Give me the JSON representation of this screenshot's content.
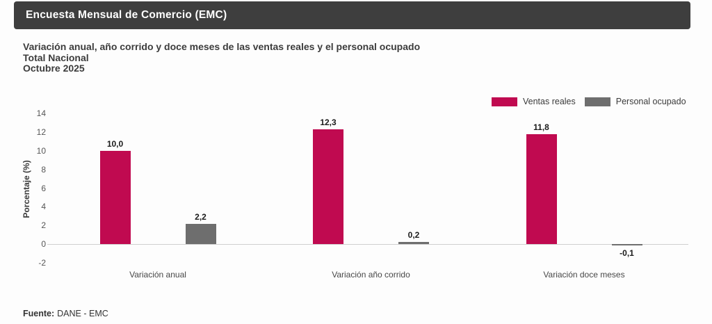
{
  "header": {
    "title": "Encuesta Mensual de Comercio (EMC)"
  },
  "subtitle": {
    "line1": "Variación anual, año corrido y doce meses de las ventas reales y el personal ocupado",
    "line2": "Total Nacional",
    "line3": "Octubre 2025"
  },
  "legend": [
    {
      "label": "Ventas reales",
      "color": "#c00a50"
    },
    {
      "label": "Personal ocupado",
      "color": "#6e6e6e"
    }
  ],
  "footer": {
    "source_label": "Fuente:",
    "source_value": "DANE - EMC"
  },
  "colors": {
    "header_bg": "#3e3e3e",
    "ventas_reales": "#c00a50",
    "personal_ocupado": "#6e6e6e",
    "zero_line": "#cfcfcf",
    "background": "#fdfdfd"
  },
  "chart_data": {
    "type": "bar",
    "categories": [
      "Variación anual",
      "Variación año corrido",
      "Variación doce meses"
    ],
    "series": [
      {
        "name": "Ventas reales",
        "color": "#c00a50",
        "values": [
          10.0,
          12.3,
          11.8
        ],
        "labels": [
          "10,0",
          "12,3",
          "11,8"
        ]
      },
      {
        "name": "Personal ocupado",
        "color": "#6e6e6e",
        "values": [
          2.2,
          0.2,
          -0.1
        ],
        "labels": [
          "2,2",
          "0,2",
          "-0,1"
        ]
      }
    ],
    "title": "Variación anual, año corrido y doce meses de las ventas reales y el personal ocupado — Total Nacional — Octubre 2025",
    "xlabel": "",
    "ylabel": "Porcentaje (%)",
    "y_ticks": [
      14,
      12,
      10,
      8,
      6,
      4,
      2,
      0,
      -2
    ],
    "ylim": [
      -2,
      14
    ],
    "grid": "zero-line-only",
    "legend_position": "top-right"
  }
}
